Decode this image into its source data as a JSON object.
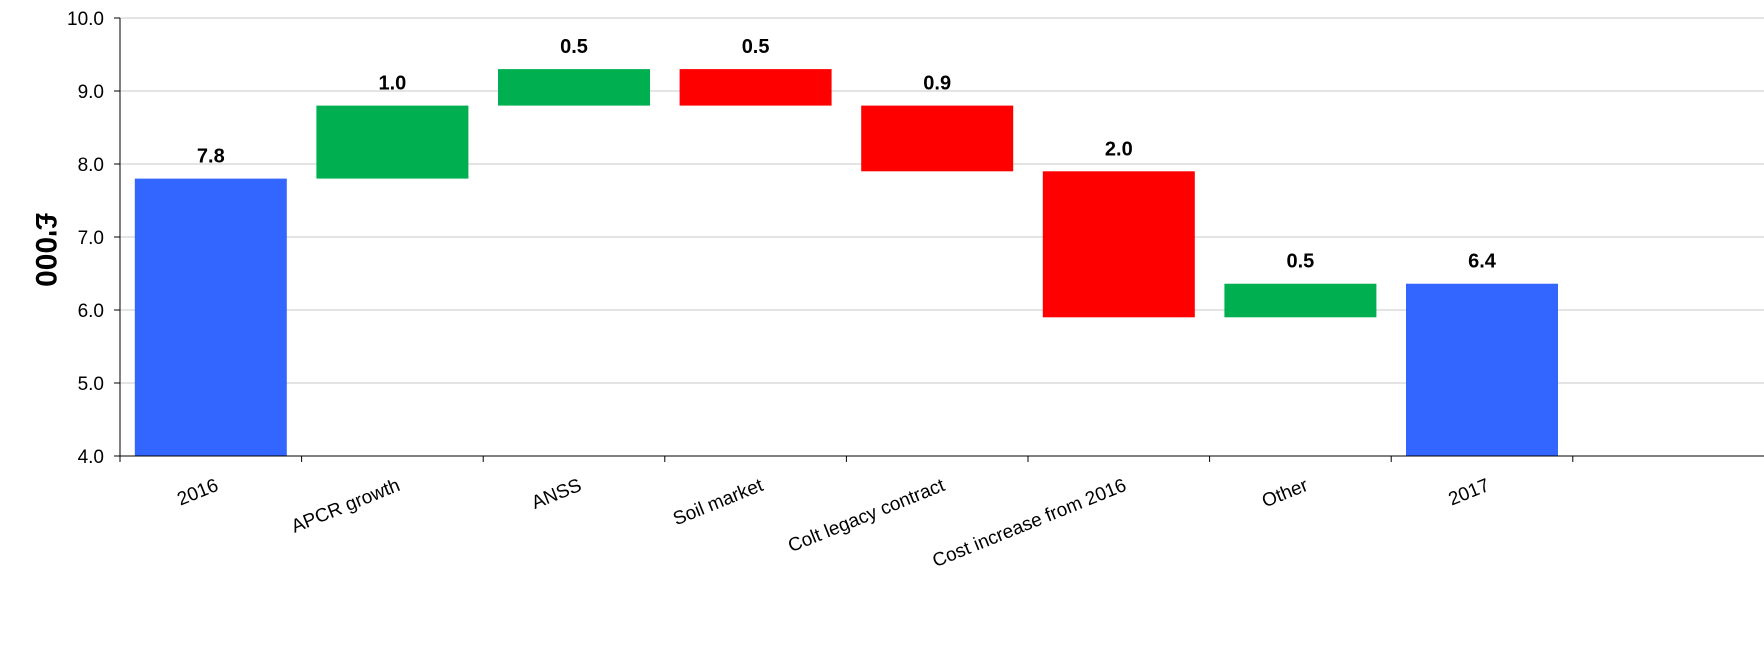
{
  "chart_data": {
    "type": "bar",
    "subtype": "waterfall",
    "title": "",
    "xlabel": "",
    "ylabel": "£'000",
    "ylim": [
      4.0,
      10.0
    ],
    "yticks": [
      "4.0",
      "5.0",
      "6.0",
      "7.0",
      "8.0",
      "9.0",
      "10.0"
    ],
    "grid": true,
    "categories": [
      "2016",
      "APCR growth",
      "ANSS",
      "Soil market",
      "Colt legacy contract",
      "Cost increase from 2016",
      "Other",
      "2017"
    ],
    "bars": [
      {
        "kind": "total",
        "start": 4.0,
        "end": 7.8,
        "label": "7.8",
        "color": "#3366ff"
      },
      {
        "kind": "increase",
        "start": 7.8,
        "end": 8.8,
        "label": "1.0",
        "color": "#00b050"
      },
      {
        "kind": "increase",
        "start": 8.8,
        "end": 9.3,
        "label": "0.5",
        "color": "#00b050"
      },
      {
        "kind": "decrease",
        "start": 9.3,
        "end": 8.8,
        "label": "0.5",
        "color": "#ff0000"
      },
      {
        "kind": "decrease",
        "start": 8.8,
        "end": 7.9,
        "label": "0.9",
        "color": "#ff0000"
      },
      {
        "kind": "decrease",
        "start": 7.9,
        "end": 5.9,
        "label": "2.0",
        "color": "#ff0000"
      },
      {
        "kind": "increase",
        "start": 5.9,
        "end": 6.36,
        "label": "0.5",
        "color": "#00b050"
      },
      {
        "kind": "total",
        "start": 4.0,
        "end": 6.36,
        "label": "6.4",
        "color": "#3366ff"
      }
    ]
  }
}
